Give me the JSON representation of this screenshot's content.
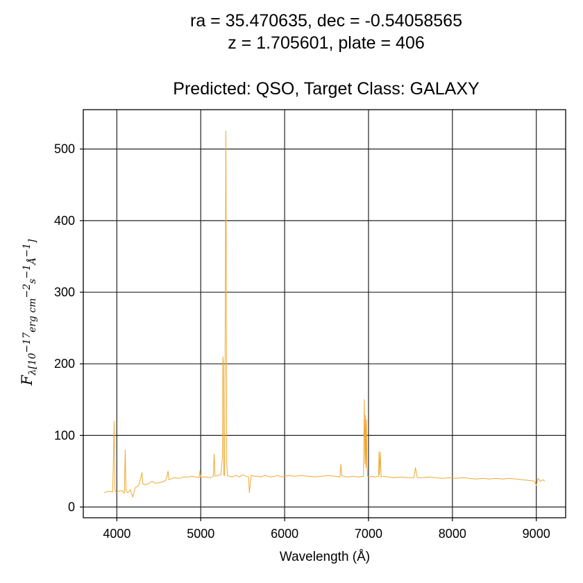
{
  "chart_data": {
    "type": "line",
    "title_lines": [
      "ra = 35.470635, dec = -0.54058565",
      "z = 1.705601, plate = 406"
    ],
    "subtitle": "Predicted: QSO, Target Class: GALAXY",
    "xlabel": "Wavelength (Å)",
    "ylabel": {
      "main": "F",
      "subscript": "λ[10",
      "exp1": "−17",
      "mid": "erg cm",
      "exp2": "−2",
      "s": "s",
      "exp3": "−1",
      "angstrom": "Å",
      "exp4": "−1",
      "close": "]"
    },
    "xlim": [
      3600,
      9350
    ],
    "ylim": [
      -15,
      555
    ],
    "xticks": [
      4000,
      5000,
      6000,
      7000,
      8000,
      9000
    ],
    "yticks": [
      0,
      100,
      200,
      300,
      400,
      500
    ],
    "grid": true,
    "line_color": "#f0a830",
    "series": [
      {
        "x": [
          3850,
          3900,
          3950,
          3960,
          3968,
          3976,
          3990,
          4020,
          4060,
          4090,
          4100,
          4110,
          4130,
          4160,
          4190,
          4220,
          4260,
          4280,
          4300,
          4310,
          4340,
          4380,
          4420,
          4460,
          4500,
          4540,
          4580,
          4600,
          4610,
          4620,
          4680,
          4740,
          4800,
          4860,
          4900,
          4980,
          4990,
          5000,
          5060,
          5120,
          5150,
          5160,
          5170,
          5200,
          5240,
          5260,
          5265,
          5270,
          5275,
          5285,
          5300,
          5310,
          5320,
          5340,
          5380,
          5420,
          5460,
          5500,
          5540,
          5570,
          5580,
          5600,
          5640,
          5680,
          5720,
          5760,
          5800,
          5840,
          5880,
          5920,
          5960,
          6000,
          6060,
          6120,
          6200,
          6280,
          6360,
          6440,
          6520,
          6600,
          6660,
          6670,
          6680,
          6700,
          6760,
          6820,
          6880,
          6940,
          6950,
          6958,
          6964,
          6970,
          6976,
          6982,
          6990,
          7000,
          7040,
          7080,
          7120,
          7125,
          7130,
          7140,
          7150,
          7180,
          7240,
          7300,
          7380,
          7460,
          7540,
          7560,
          7580,
          7640,
          7720,
          7800,
          7880,
          7960,
          8040,
          8120,
          8200,
          8280,
          8360,
          8440,
          8520,
          8600,
          8680,
          8760,
          8840,
          8920,
          8980,
          9000,
          9020,
          9050,
          9080,
          9100
        ],
        "y": [
          20,
          22,
          21,
          70,
          120,
          25,
          20,
          22,
          23,
          19,
          80,
          22,
          20,
          24,
          14,
          27,
          30,
          38,
          48,
          32,
          31,
          33,
          36,
          33,
          34,
          35,
          37,
          44,
          50,
          38,
          41,
          40,
          42,
          42,
          43,
          41,
          50,
          42,
          42,
          41,
          43,
          74,
          43,
          44,
          45,
          70,
          210,
          200,
          45,
          44,
          525,
          60,
          44,
          43,
          42,
          44,
          42,
          45,
          43,
          42,
          20,
          44,
          43,
          43,
          42,
          44,
          43,
          42,
          43,
          44,
          42,
          43,
          44,
          43,
          44,
          43,
          42,
          43,
          44,
          43,
          42,
          60,
          44,
          43,
          42,
          43,
          42,
          43,
          150,
          60,
          128,
          55,
          122,
          55,
          43,
          42,
          43,
          42,
          43,
          77,
          45,
          77,
          42,
          43,
          42,
          41,
          42,
          41,
          41,
          55,
          41,
          41,
          42,
          41,
          40,
          41,
          40,
          41,
          40,
          39,
          40,
          39,
          40,
          39,
          40,
          39,
          38,
          37,
          36,
          30,
          40,
          36,
          38,
          36
        ]
      }
    ]
  }
}
